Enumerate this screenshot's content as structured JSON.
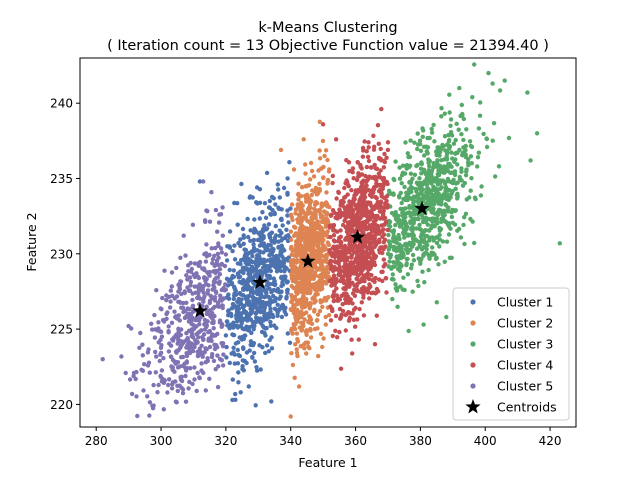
{
  "chart_data": {
    "type": "scatter",
    "title": "k-Means Clustering",
    "subtitle": "( Iteration count = 13 Objective Function value = 21394.40 )",
    "xlabel": "Feature 1",
    "ylabel": "Feature 2",
    "xlim": [
      275,
      428
    ],
    "ylim": [
      218.5,
      243
    ],
    "xticks": [
      280,
      300,
      320,
      340,
      360,
      380,
      400,
      420
    ],
    "yticks": [
      220,
      225,
      230,
      235,
      240
    ],
    "grid": false,
    "legend_position": "lower-right",
    "series": [
      {
        "name": "Cluster 1",
        "color": "#4c72b0",
        "x_range": [
          320,
          340
        ],
        "center": [
          330.5,
          228.1
        ],
        "spread": [
          6.5,
          3.0
        ],
        "count": 700,
        "outliers": [
          [
            312,
            234.8
          ],
          [
            336,
            234.6
          ],
          [
            322,
            220.3
          ],
          [
            334,
            220.2
          ]
        ]
      },
      {
        "name": "Cluster 2",
        "color": "#dd8452",
        "x_range": [
          340,
          352
        ],
        "center": [
          345.3,
          229.5
        ],
        "spread": [
          5.5,
          3.2
        ],
        "count": 800,
        "outliers": [
          [
            340,
            219.2
          ],
          [
            337,
            236.9
          ],
          [
            344,
            237.6
          ],
          [
            341,
            235.6
          ]
        ]
      },
      {
        "name": "Cluster 3",
        "color": "#55a868",
        "x_range": [
          370,
          423
        ],
        "center": [
          380.5,
          233.0
        ],
        "spread": [
          8.5,
          2.8
        ],
        "count": 750,
        "outliers": [
          [
            401,
            242.0
          ],
          [
            406,
            241.5
          ],
          [
            392,
            241.0
          ],
          [
            413,
            240.7
          ],
          [
            396,
            240.4
          ],
          [
            416,
            238.0
          ],
          [
            423,
            230.7
          ],
          [
            388,
            225.8
          ],
          [
            381,
            225.3
          ],
          [
            414,
            236.2
          ]
        ]
      },
      {
        "name": "Cluster 4",
        "color": "#c44e52",
        "x_range": [
          352,
          370
        ],
        "center": [
          360.6,
          231.1
        ],
        "spread": [
          5.8,
          2.9
        ],
        "count": 900,
        "outliers": [
          [
            350,
            238.6
          ],
          [
            354,
            237.6
          ],
          [
            364,
            237.4
          ],
          [
            370,
            237.4
          ],
          [
            361,
            224.3
          ],
          [
            366,
            224.0
          ]
        ]
      },
      {
        "name": "Cluster 5",
        "color": "#8172b3",
        "x_range": [
          280,
          320
        ],
        "center": [
          312.0,
          226.2
        ],
        "spread": [
          8.5,
          3.0
        ],
        "count": 500,
        "outliers": [
          [
            282,
            223.0
          ],
          [
            290,
            225.2
          ],
          [
            294,
            222.3
          ],
          [
            311,
            220.9
          ],
          [
            313,
            234.8
          ],
          [
            318,
            232.6
          ],
          [
            307,
            231.2
          ]
        ]
      }
    ],
    "centroids": {
      "name": "Centroids",
      "color": "#000000",
      "points": [
        [
          330.5,
          228.1
        ],
        [
          345.3,
          229.5
        ],
        [
          380.5,
          233.0
        ],
        [
          360.6,
          231.1
        ],
        [
          312.0,
          226.2
        ]
      ]
    }
  }
}
